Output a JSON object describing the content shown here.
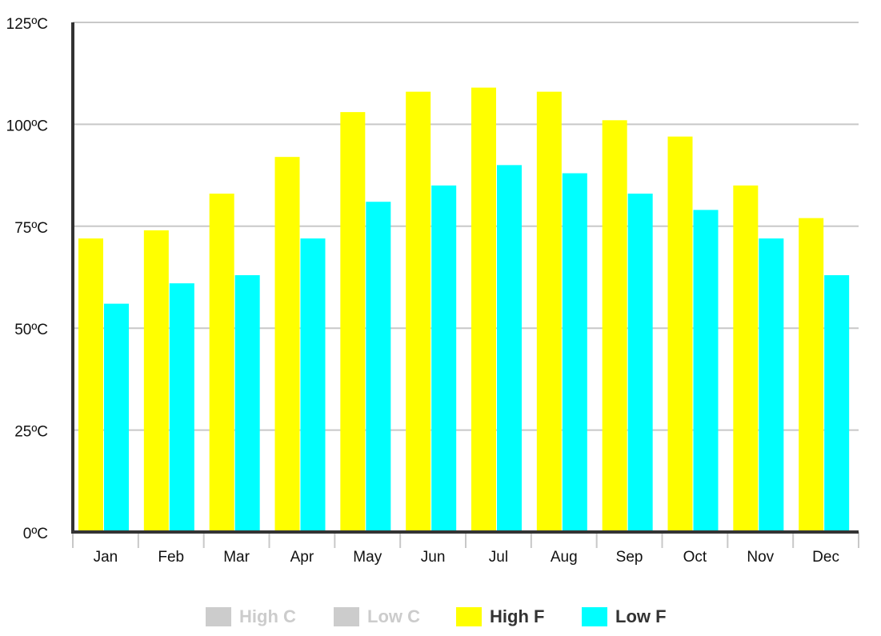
{
  "chart_data": {
    "type": "bar",
    "categories": [
      "Jan",
      "Feb",
      "Mar",
      "Apr",
      "May",
      "Jun",
      "Jul",
      "Aug",
      "Sep",
      "Oct",
      "Nov",
      "Dec"
    ],
    "series": [
      {
        "name": "High C",
        "color": "#cccccc",
        "visible": false,
        "values": [
          null,
          null,
          null,
          null,
          null,
          null,
          null,
          null,
          null,
          null,
          null,
          null
        ]
      },
      {
        "name": "Low C",
        "color": "#cccccc",
        "visible": false,
        "values": [
          null,
          null,
          null,
          null,
          null,
          null,
          null,
          null,
          null,
          null,
          null,
          null
        ]
      },
      {
        "name": "High F",
        "color": "#ffff00",
        "visible": true,
        "values": [
          72,
          74,
          83,
          92,
          103,
          108,
          109,
          108,
          101,
          97,
          85,
          77
        ]
      },
      {
        "name": "Low F",
        "color": "#00ffff",
        "visible": true,
        "values": [
          56,
          61,
          63,
          72,
          81,
          85,
          90,
          88,
          83,
          79,
          72,
          63
        ]
      }
    ],
    "ylim": [
      0,
      125
    ],
    "yticks": [
      {
        "value": 0,
        "label": "0ºC"
      },
      {
        "value": 25,
        "label": "25ºC"
      },
      {
        "value": 50,
        "label": "50ºC"
      },
      {
        "value": 75,
        "label": "75ºC"
      },
      {
        "value": 100,
        "label": "100ºC"
      },
      {
        "value": 125,
        "label": "125ºC"
      }
    ],
    "grid": true,
    "legend": "bottom"
  }
}
